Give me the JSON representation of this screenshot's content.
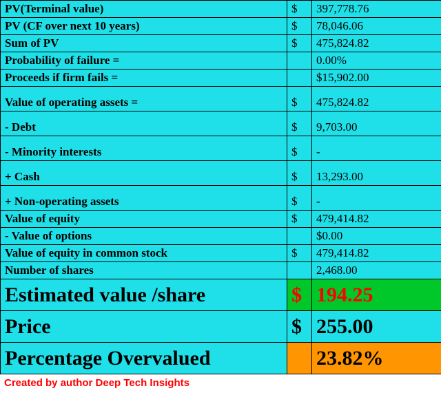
{
  "colors": {
    "cyan": "#1fe0e8",
    "green": "#00c72a",
    "orange": "#ff9500",
    "red_text": "#ff0000",
    "black": "#000000",
    "border": "#000000"
  },
  "typography": {
    "font_family": "Times New Roman",
    "normal_fontsize": 17,
    "big_fontsize": 30
  },
  "rows": {
    "pv_terminal": {
      "label": "PV(Terminal value)",
      "sym": "$",
      "value": "397,778.76"
    },
    "pv_cf10": {
      "label": "PV (CF over next 10 years)",
      "sym": "$",
      "value": "78,046.06"
    },
    "sum_pv": {
      "label": "Sum of PV",
      "sym": "$",
      "value": "475,824.82"
    },
    "prob_fail": {
      "label": "Probability of failure =",
      "sym": "",
      "value": "0.00%"
    },
    "proceeds_fail": {
      "label": "Proceeds if firm fails =",
      "sym": "",
      "value": "$15,902.00"
    },
    "value_op_assets": {
      "label": "Value of operating assets =",
      "sym": "$",
      "value": "475,824.82"
    },
    "debt": {
      "label": " - Debt",
      "sym": "$",
      "value": "9,703.00"
    },
    "minority": {
      "label": " - Minority interests",
      "sym": "$",
      "value": "-"
    },
    "cash": {
      "label": " +  Cash",
      "sym": "$",
      "value": "13,293.00"
    },
    "non_op": {
      "label": " + Non-operating assets",
      "sym": "$",
      "value": "-"
    },
    "value_equity": {
      "label": "Value of equity",
      "sym": "$",
      "value": "479,414.82"
    },
    "value_options": {
      "label": " - Value of options",
      "sym": "",
      "value": "$0.00"
    },
    "value_eq_common": {
      "label": "Value of equity in common stock",
      "sym": "$",
      "value": "479,414.82"
    },
    "num_shares": {
      "label": "Number of shares",
      "sym": "",
      "value": "2,468.00"
    },
    "est_value": {
      "label": "Estimated value /share",
      "sym": "$",
      "value": "194.25"
    },
    "price": {
      "label": "Price",
      "sym": "$",
      "value": "255.00"
    },
    "pct_over": {
      "label": "Percentage Overvalued",
      "sym": "",
      "value": "23.82%"
    }
  },
  "credit": "Created by author Deep Tech Insights"
}
